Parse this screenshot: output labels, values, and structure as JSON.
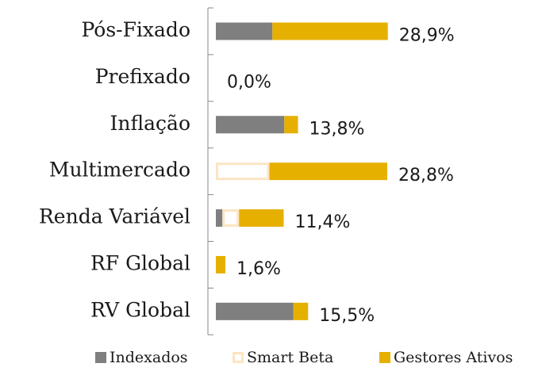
{
  "chart_data": {
    "type": "stacked-barh",
    "categories": [
      "Pós-Fixado",
      "Prefixado",
      "Inflação",
      "Multimercado",
      "Renda Variável",
      "RF Global",
      "RV Global"
    ],
    "series": [
      {
        "name": "Indexados",
        "color": "#7f7f7f",
        "values": [
          9.5,
          0,
          11.5,
          0,
          1.1,
          0,
          13.0
        ]
      },
      {
        "name": "Smart Beta",
        "color": "#fce4c4",
        "values": [
          0,
          0,
          0,
          9.0,
          2.8,
          0,
          0
        ]
      },
      {
        "name": "Gestores Ativos",
        "color": "#e6b000",
        "values": [
          19.4,
          0,
          2.3,
          19.8,
          7.5,
          1.6,
          2.5
        ]
      }
    ],
    "totals": [
      28.9,
      0,
      13.8,
      28.8,
      11.4,
      1.6,
      15.5
    ],
    "total_labels": [
      "28,9%",
      "0,0%",
      "13,8%",
      "28,8%",
      "11,4%",
      "1,6%",
      "15,5%"
    ],
    "xlim": [
      0,
      30
    ]
  }
}
